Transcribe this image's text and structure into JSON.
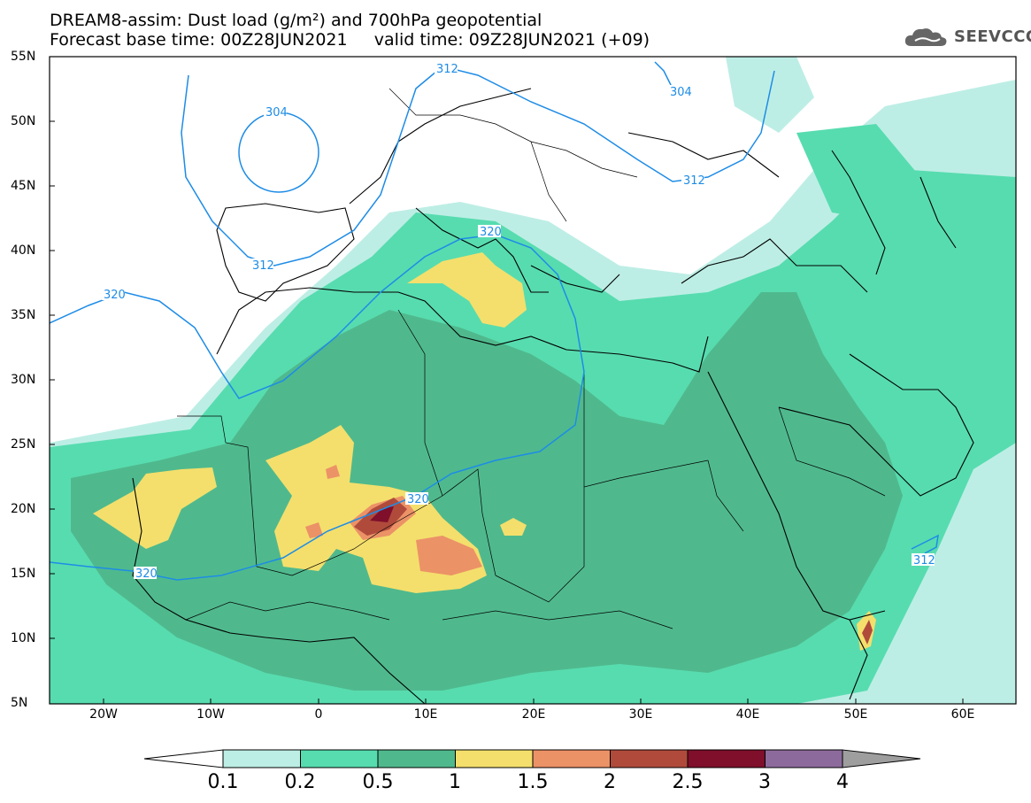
{
  "header": {
    "line1": "DREAM8-assim: Dust load (g/m²) and 700hPa geopotential",
    "line2": "Forecast base time: 00Z28JUN2021     valid time: 09Z28JUN2021 (+09)"
  },
  "logo": {
    "text": "SEEVCCC",
    "icon": "cloud-icon"
  },
  "map": {
    "lat_labels": [
      "55N",
      "50N",
      "45N",
      "40N",
      "35N",
      "30N",
      "25N",
      "20N",
      "15N",
      "10N",
      "5N"
    ],
    "lon_labels": [
      "20W",
      "10W",
      "0",
      "10E",
      "20E",
      "30E",
      "40E",
      "50E",
      "60E"
    ],
    "contour_labels": [
      "312",
      "304",
      "312",
      "304",
      "312",
      "320",
      "320",
      "320",
      "320",
      "312"
    ]
  },
  "legend": {
    "colors": [
      "#bdeee5",
      "#57dcaf",
      "#4fb98d",
      "#f4df6c",
      "#ec9267",
      "#b04b3c",
      "#7f0f2a",
      "#8c6b9c",
      "#9e9e9e"
    ],
    "ticks": [
      "0.1",
      "0.2",
      "0.5",
      "1",
      "1.5",
      "2",
      "2.5",
      "3",
      "4"
    ]
  }
}
